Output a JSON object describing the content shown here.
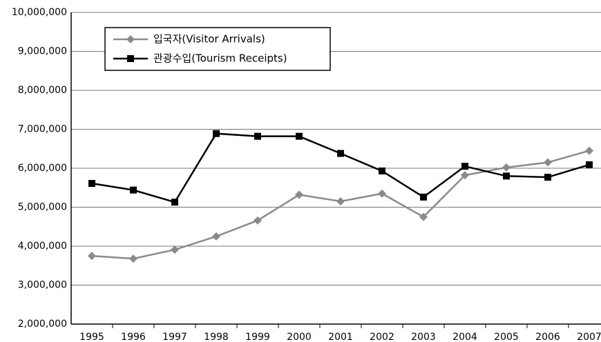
{
  "chart_data": {
    "type": "line",
    "categories": [
      "1995",
      "1996",
      "1997",
      "1998",
      "1999",
      "2000",
      "2001",
      "2002",
      "2003",
      "2004",
      "2005",
      "2006",
      "2007"
    ],
    "series": [
      {
        "name": "입국자(Visitor Arrivals)",
        "color": "#8a8a8a",
        "marker": "diamond",
        "values": [
          3750000,
          3680000,
          3910000,
          4250000,
          4660000,
          5320000,
          5150000,
          5350000,
          4750000,
          5820000,
          6020000,
          6150000,
          6450000
        ]
      },
      {
        "name": "관광수입(Tourism Receipts)",
        "color": "#000000",
        "marker": "square",
        "values": [
          5610000,
          5440000,
          5130000,
          6890000,
          6820000,
          6820000,
          6380000,
          5930000,
          5260000,
          6050000,
          5800000,
          5770000,
          6090000
        ]
      }
    ],
    "ylim": [
      2000000,
      10000000
    ],
    "yticks": [
      {
        "value": 2000000,
        "label": "2,000,000"
      },
      {
        "value": 3000000,
        "label": "3,000,000"
      },
      {
        "value": 4000000,
        "label": "4,000,000"
      },
      {
        "value": 5000000,
        "label": "5,000,000"
      },
      {
        "value": 6000000,
        "label": "6,000,000"
      },
      {
        "value": 7000000,
        "label": "7,000,000"
      },
      {
        "value": 8000000,
        "label": "8,000,000"
      },
      {
        "value": 9000000,
        "label": "9,000,000"
      },
      {
        "value": 10000000,
        "label": "10,000,000"
      }
    ],
    "grid": true,
    "legend": "upper left"
  }
}
